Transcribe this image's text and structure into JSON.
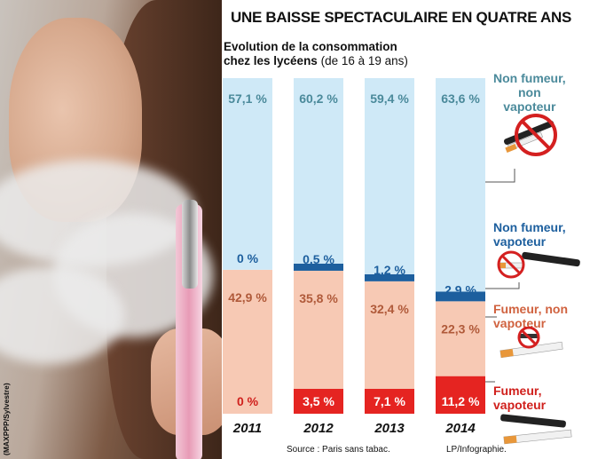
{
  "title": "UNE BAISSE SPECTACULAIRE EN QUATRE ANS",
  "subtitle_bold": "Evolution de la consommation chez les lycéens",
  "subtitle_line1": "Evolution de la consommation",
  "subtitle_line2_bold": "chez les lycéens",
  "subtitle_line2_regular": "(de 16 à 19 ans)",
  "photo_credit": "(MAXPPP/Sylvestre)",
  "source": "Source : Paris sans tabac.",
  "credit": "LP/Infographie.",
  "colors": {
    "non_fumeur_non_vapoteur": "#cfe9f7",
    "non_fumeur_vapoteur": "#1d5f9e",
    "fumeur_non_vapoteur": "#f7c9b4",
    "fumeur_vapoteur": "#e52421",
    "label_light_blue": "#4b8a9b",
    "label_orange": "#b05a3a"
  },
  "legend": [
    {
      "line1": "Non fumeur,",
      "line2": "non",
      "line3": "vapoteur",
      "icon": "crossed-cigarette-and-ecig-icon"
    },
    {
      "line1": "Non fumeur,",
      "line2": "vapoteur",
      "icon": "ecig-crossed-cigarette-icon"
    },
    {
      "line1": "Fumeur, non",
      "line2": "vapoteur",
      "icon": "cigarette-crossed-ecig-icon"
    },
    {
      "line1": "Fumeur,",
      "line2": "vapoteur",
      "icon": "cigarette-and-ecig-icon"
    }
  ],
  "chart_data": {
    "type": "bar",
    "stacked": true,
    "categories": [
      "2011",
      "2012",
      "2013",
      "2014"
    ],
    "series": [
      {
        "name": "Fumeur, vapoteur",
        "values": [
          0,
          3.5,
          7.1,
          11.2
        ],
        "labels": [
          "0 %",
          "3,5 %",
          "7,1 %",
          "11,2 %"
        ]
      },
      {
        "name": "Fumeur, non vapoteur",
        "values": [
          42.9,
          35.8,
          32.4,
          22.3
        ],
        "labels": [
          "42,9 %",
          "35,8 %",
          "32,4 %",
          "22,3 %"
        ]
      },
      {
        "name": "Non fumeur, vapoteur",
        "values": [
          0,
          0.5,
          1.2,
          2.9
        ],
        "labels": [
          "0 %",
          "0,5 %",
          "1,2 %",
          "2,9 %"
        ]
      },
      {
        "name": "Non fumeur, non vapoteur",
        "values": [
          57.1,
          60.2,
          59.4,
          63.6
        ],
        "labels": [
          "57,1 %",
          "60,2 %",
          "59,4 %",
          "63,6 %"
        ]
      }
    ],
    "ylim": [
      0,
      100
    ],
    "grid": false,
    "legend_position": "right"
  }
}
